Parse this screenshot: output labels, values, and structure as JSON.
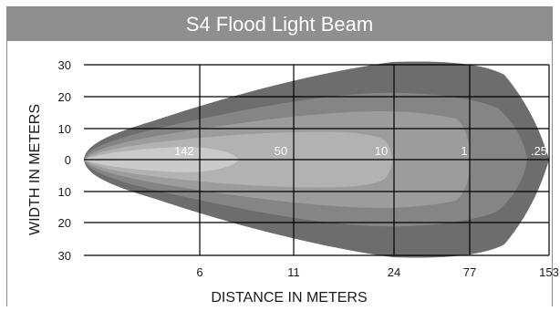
{
  "chart_data": {
    "type": "area",
    "title": "S4 Flood Light Beam",
    "xlabel": "DISTANCE IN METERS",
    "ylabel": "WIDTH IN METERS",
    "x_tick_labels": [
      "6",
      "11",
      "24",
      "77",
      "153"
    ],
    "y_tick_labels": [
      "30",
      "20",
      "10",
      "0",
      "10",
      "20",
      "30"
    ],
    "ylim": [
      -30,
      30
    ],
    "grid": true,
    "lux_labels": [
      "142",
      "50",
      "10",
      "1",
      ".25"
    ],
    "colors": {
      "title_bar": "#8f8f8f",
      "zone_025": "#6d6d6d",
      "zone_1": "#858585",
      "zone_10": "#9c9c9c",
      "zone_50": "#b2b2b2",
      "zone_142": "#cacaca",
      "grid": "#000000"
    }
  }
}
